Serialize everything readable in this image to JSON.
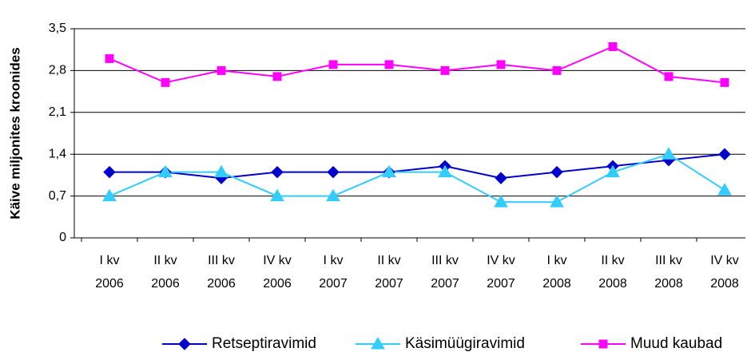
{
  "chart_data": {
    "type": "line",
    "y_label": "Käive miljonites kroonides",
    "categories": [
      [
        "I kv",
        "2006"
      ],
      [
        "II kv",
        "2006"
      ],
      [
        "III kv",
        "2006"
      ],
      [
        "IV kv",
        "2006"
      ],
      [
        "I kv",
        "2007"
      ],
      [
        "II kv",
        "2007"
      ],
      [
        "III kv",
        "2007"
      ],
      [
        "IV kv",
        "2007"
      ],
      [
        "I kv",
        "2008"
      ],
      [
        "II kv",
        "2008"
      ],
      [
        "III kv",
        "2008"
      ],
      [
        "IV kv",
        "2008"
      ]
    ],
    "series": [
      {
        "name": "Retseptiravimid",
        "color": "#0000cc",
        "marker": "diamond",
        "values": [
          1.1,
          1.1,
          1.0,
          1.1,
          1.1,
          1.1,
          1.2,
          1.0,
          1.1,
          1.2,
          1.3,
          1.4
        ]
      },
      {
        "name": "Käsimüügiravimid",
        "color": "#33ccff",
        "marker": "triangle",
        "values": [
          0.7,
          1.1,
          1.1,
          0.7,
          0.7,
          1.1,
          1.1,
          0.6,
          0.6,
          1.1,
          1.4,
          0.8
        ]
      },
      {
        "name": "Muud kaubad",
        "color": "#ff00ff",
        "marker": "square",
        "values": [
          3.0,
          2.6,
          2.8,
          2.7,
          2.9,
          2.9,
          2.8,
          2.9,
          2.8,
          3.2,
          2.7,
          2.6
        ]
      }
    ],
    "ylim": [
      0,
      3.5
    ],
    "yticks": [
      0,
      {
        "value": 0.7,
        "label": "0,7"
      },
      {
        "value": 1.4,
        "label": "1,4"
      },
      {
        "value": 2.1,
        "label": "2,1"
      },
      {
        "value": 2.8,
        "label": "2,8"
      },
      {
        "value": 3.5,
        "label": "3,5"
      }
    ],
    "grid": true,
    "legend": "bottom"
  }
}
